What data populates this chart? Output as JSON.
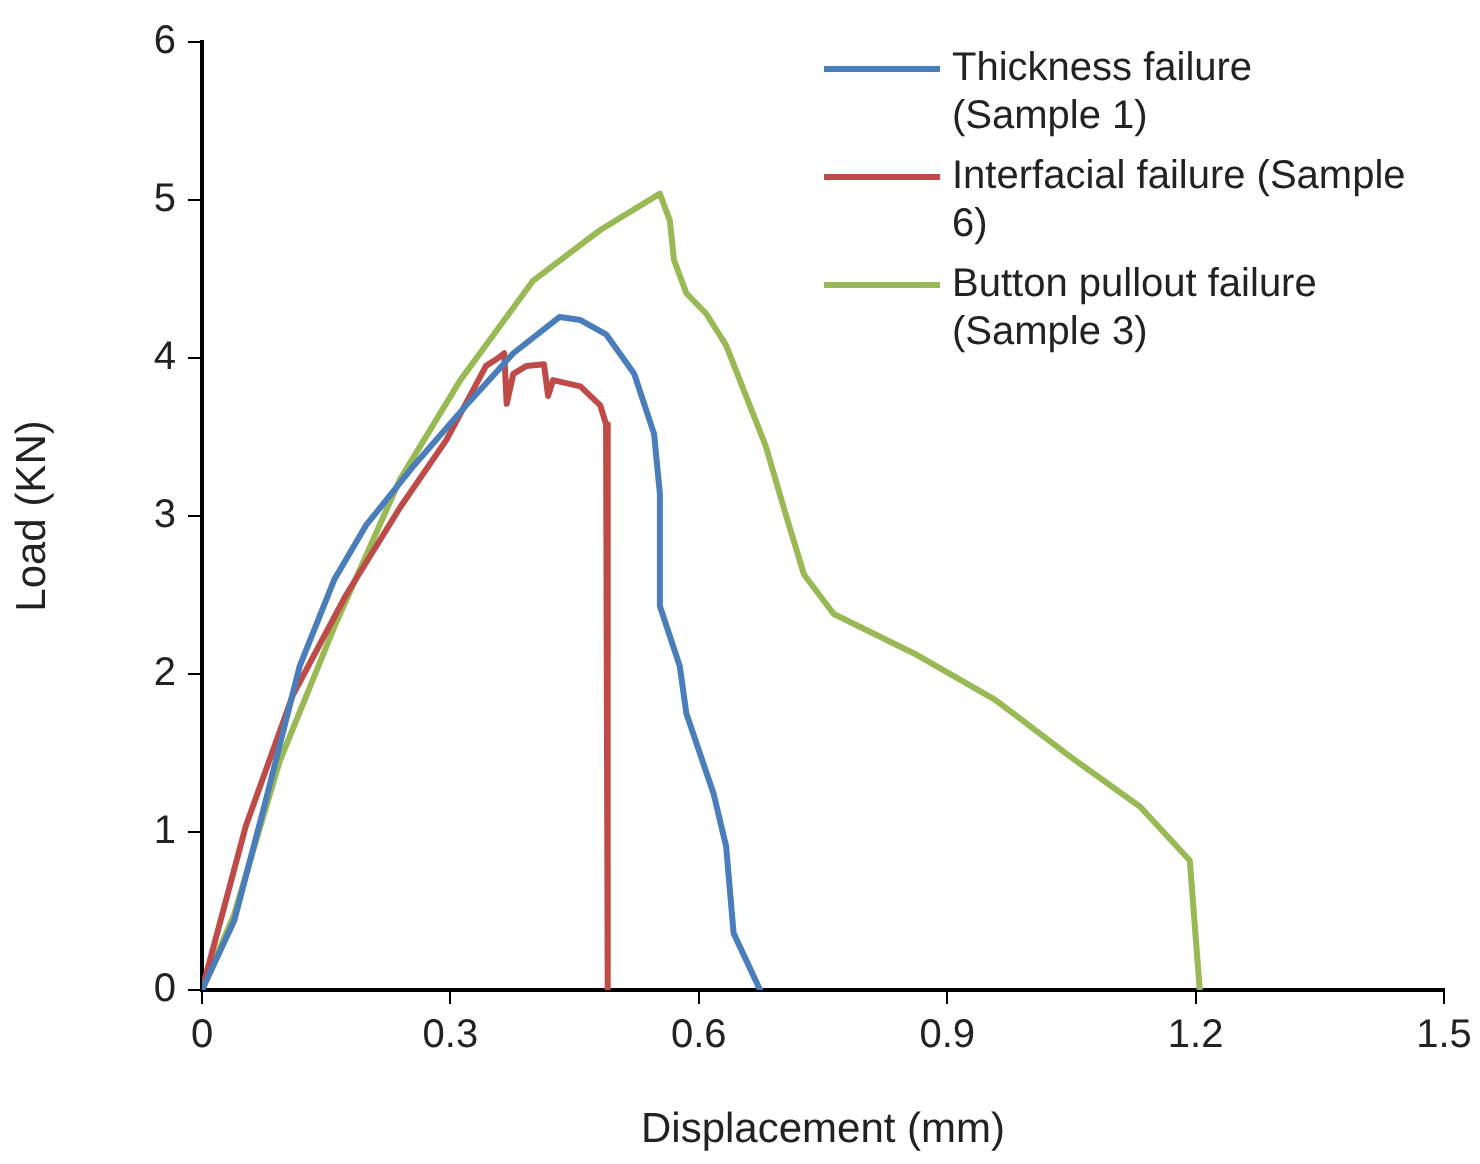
{
  "chart_data": {
    "type": "line",
    "xlabel": "Displacement (mm)",
    "ylabel": "Load (KN)",
    "xlim": [
      0,
      1.5
    ],
    "xticks": [
      0,
      0.3,
      0.6,
      0.9,
      1.2,
      1.5
    ],
    "ylim": [
      0,
      6
    ],
    "yticks": [
      0,
      1,
      2,
      3,
      4,
      5,
      6
    ],
    "grid": false,
    "legend": "top right",
    "marker": "none",
    "line_style": "solid",
    "series": [
      {
        "name": "Thickness failure (Sample 1)",
        "color": "#4a7ebb",
        "x": [
          0,
          0.039,
          0.077,
          0.118,
          0.16,
          0.198,
          0.256,
          0.319,
          0.376,
          0.432,
          0.457,
          0.488,
          0.522,
          0.546,
          0.553,
          0.553,
          0.577,
          0.585,
          0.618,
          0.633,
          0.642,
          0.674
        ],
        "values": [
          0,
          0.44,
          1.2,
          2.05,
          2.6,
          2.94,
          3.32,
          3.7,
          4.03,
          4.26,
          4.24,
          4.15,
          3.9,
          3.52,
          3.14,
          2.43,
          2.05,
          1.75,
          1.24,
          0.91,
          0.36,
          0
        ]
      },
      {
        "name": "Interfacial failure (Sample 6)",
        "color": "#be4b48",
        "x": [
          0,
          0.053,
          0.11,
          0.174,
          0.24,
          0.295,
          0.343,
          0.355,
          0.365,
          0.368,
          0.376,
          0.392,
          0.413,
          0.418,
          0.424,
          0.457,
          0.481,
          0.488,
          0.49
        ],
        "values": [
          0,
          1.04,
          1.87,
          2.5,
          3.06,
          3.48,
          3.95,
          3.99,
          4.03,
          3.71,
          3.9,
          3.95,
          3.96,
          3.76,
          3.86,
          3.82,
          3.7,
          3.58,
          0
        ]
      },
      {
        "name": "Button pullout failure (Sample 3)",
        "color": "#98b954",
        "x": [
          0,
          0.039,
          0.094,
          0.16,
          0.239,
          0.312,
          0.4,
          0.481,
          0.553,
          0.565,
          0.57,
          0.585,
          0.609,
          0.633,
          0.681,
          0.705,
          0.727,
          0.763,
          0.86,
          0.957,
          1.053,
          1.133,
          1.193,
          1.205
        ],
        "values": [
          0,
          0.48,
          1.45,
          2.3,
          3.23,
          3.86,
          4.49,
          4.81,
          5.04,
          4.87,
          4.62,
          4.41,
          4.28,
          4.08,
          3.44,
          3.01,
          2.63,
          2.38,
          2.13,
          1.84,
          1.46,
          1.16,
          0.82,
          0
        ]
      }
    ]
  }
}
